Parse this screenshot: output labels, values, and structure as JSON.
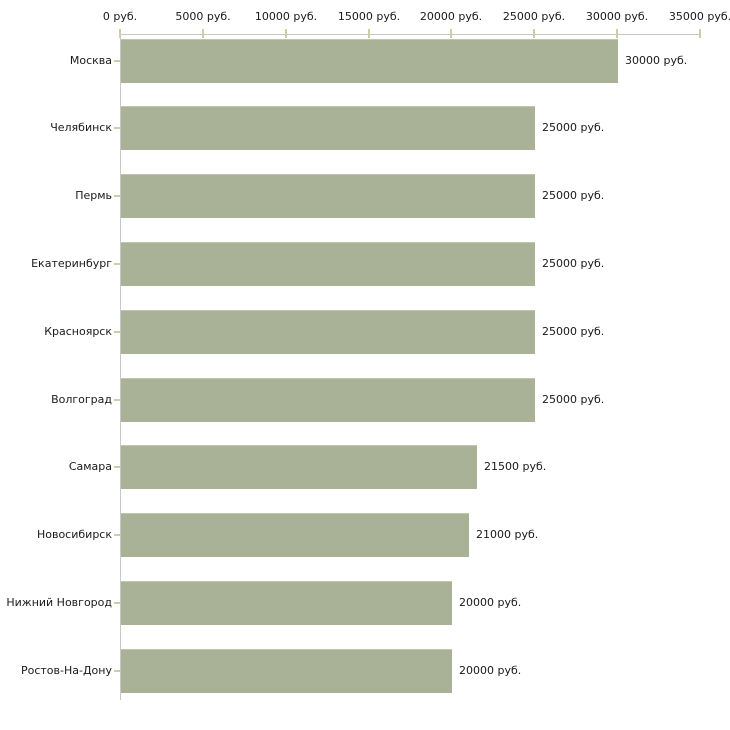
{
  "chart_data": {
    "type": "bar",
    "orientation": "horizontal",
    "title": "",
    "categories": [
      "Москва",
      "Челябинск",
      "Пермь",
      "Екатеринбург",
      "Красноярск",
      "Волгоград",
      "Самара",
      "Новосибирск",
      "Нижний Новгород",
      "Ростов-На-Дону"
    ],
    "values": [
      30000,
      25000,
      25000,
      25000,
      25000,
      25000,
      21500,
      21000,
      20000,
      20000
    ],
    "value_labels": [
      "30000 руб.",
      "25000 руб.",
      "25000 руб.",
      "25000 руб.",
      "25000 руб.",
      "25000 руб.",
      "21500 руб.",
      "21000 руб.",
      "20000 руб.",
      "20000 руб."
    ],
    "unit": "руб.",
    "x_axis": {
      "position": "top",
      "min": 0,
      "max": 35000,
      "tick_step": 5000,
      "tick_labels": [
        "0 руб.",
        "5000 руб.",
        "10000 руб.",
        "15000 руб.",
        "20000 руб.",
        "25000 руб.",
        "30000 руб.",
        "35000 руб."
      ]
    },
    "legend": "none",
    "grid": false,
    "colors": {
      "bar_fill": "#a9b296",
      "bar_top_edge": "#c1c7ad",
      "axis_line": "#c7c7c7",
      "tick_mark": "#cfcba2",
      "text": "#1a1a1a",
      "background": "#ffffff"
    }
  }
}
